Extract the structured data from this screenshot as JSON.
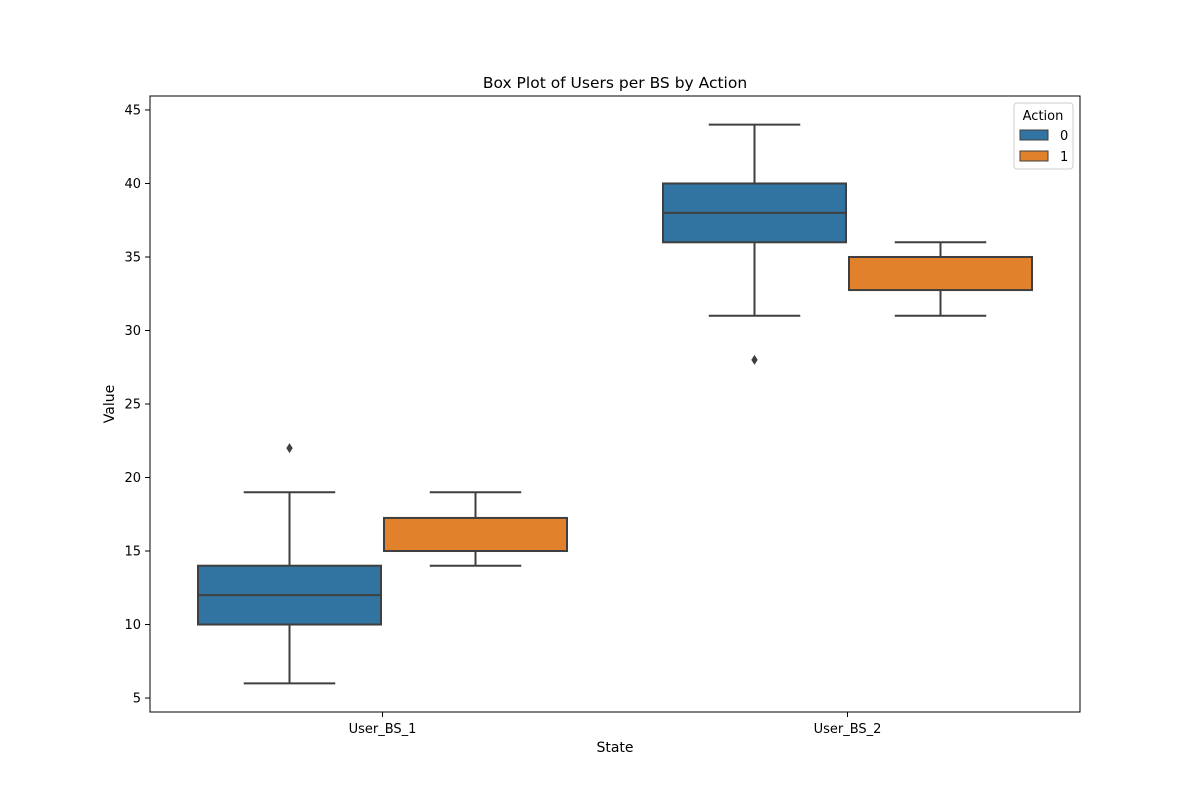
{
  "chart_data": {
    "type": "box",
    "title": "Box Plot of Users per BS by Action",
    "xlabel": "State",
    "ylabel": "Value",
    "ylim": [
      4.05,
      45.95
    ],
    "yticks": [
      5,
      10,
      15,
      20,
      25,
      30,
      35,
      40,
      45
    ],
    "categories": [
      "User_BS_1",
      "User_BS_2"
    ],
    "legend": {
      "title": "Action",
      "position": "top-right"
    },
    "series": [
      {
        "name": "0",
        "color": "#3274a1",
        "boxes": [
          {
            "category": "User_BS_1",
            "whisker_low": 6,
            "q1": 10,
            "median": 12,
            "q3": 14,
            "whisker_high": 19,
            "outliers": [
              22
            ]
          },
          {
            "category": "User_BS_2",
            "whisker_low": 31,
            "q1": 36,
            "median": 38,
            "q3": 40,
            "whisker_high": 44,
            "outliers": [
              28
            ]
          }
        ]
      },
      {
        "name": "1",
        "color": "#e1812c",
        "boxes": [
          {
            "category": "User_BS_1",
            "whisker_low": 14,
            "q1": 15,
            "median": 15,
            "q3": 17.25,
            "whisker_high": 19,
            "outliers": []
          },
          {
            "category": "User_BS_2",
            "whisker_low": 31,
            "q1": 32.75,
            "median": 35,
            "q3": 35,
            "whisker_high": 36,
            "outliers": []
          }
        ]
      }
    ],
    "grid": false
  }
}
